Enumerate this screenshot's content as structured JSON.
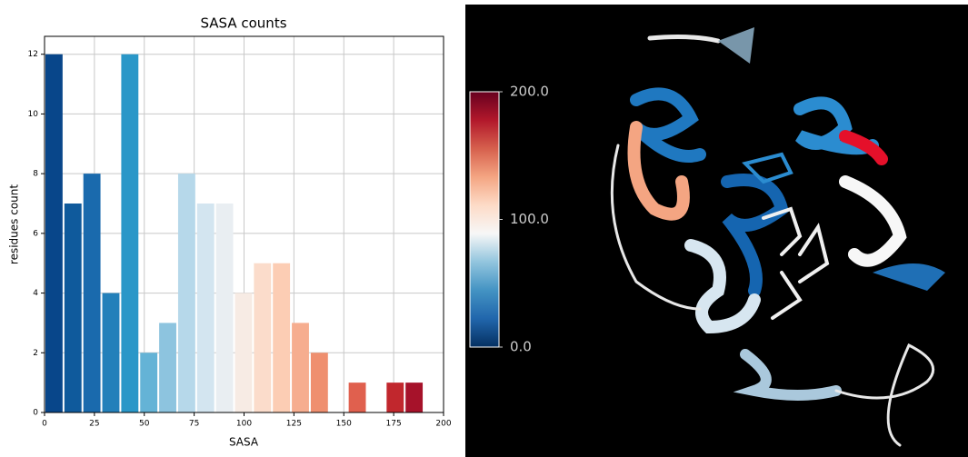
{
  "chart_data": {
    "type": "histogram",
    "title": "SASA counts",
    "x_label": "SASA",
    "y_label": "residues count",
    "bins": [
      0,
      9.5,
      19,
      28.5,
      38,
      47.5,
      57,
      66.5,
      76,
      85.5,
      95,
      104.5,
      114,
      123.5,
      133,
      142.5,
      152,
      161.5,
      171,
      180.5,
      190
    ],
    "values": [
      12,
      7,
      8,
      4,
      12,
      2,
      3,
      8,
      7,
      7,
      4,
      5,
      5,
      3,
      2,
      0,
      1,
      0,
      1,
      1
    ],
    "colors": [
      "#08468a",
      "#0f5a9c",
      "#1a6aad",
      "#2380ba",
      "#2a97c8",
      "#64b3d6",
      "#8dc4df",
      "#b6d8ea",
      "#d3e5f0",
      "#e9eef2",
      "#f7ebe4",
      "#fbdccb",
      "#fccdb4",
      "#f6ad8f",
      "#ef8f6f",
      "#e67058",
      "#e0604e",
      "#c93a3a",
      "#c1272d",
      "#a6122a"
    ],
    "xlim": [
      0,
      200
    ],
    "ylim": [
      0,
      12.6
    ],
    "xticks": [
      0,
      25,
      50,
      75,
      100,
      125,
      150,
      175,
      200
    ],
    "yticks": [
      0,
      2,
      4,
      6,
      8,
      10,
      12
    ],
    "grid": true,
    "colorbar": {
      "lim": [
        0,
        200
      ],
      "colors": [
        "#053061",
        "#2166ac",
        "#4393c3",
        "#92c5de",
        "#f7f7f7",
        "#fddbc7",
        "#f4a582",
        "#d6604d",
        "#b2182b",
        "#67001f"
      ],
      "ticks": [
        {
          "value": 0,
          "label": "0.0"
        },
        {
          "value": 100,
          "label": "100.0"
        },
        {
          "value": 200,
          "label": "200.0"
        }
      ]
    }
  }
}
